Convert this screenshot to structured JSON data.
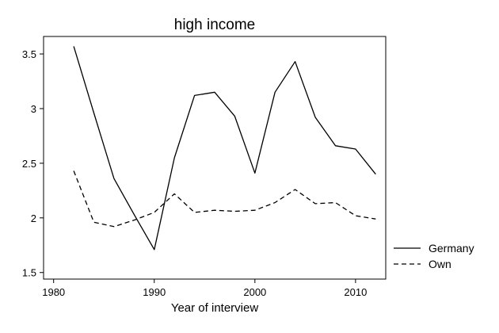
{
  "chart_data": {
    "type": "line",
    "title": "high income",
    "xlabel": "Year of interview",
    "ylabel": "",
    "xlim": [
      1979,
      2013
    ],
    "ylim": [
      1.44,
      3.66
    ],
    "xticks": [
      1980,
      1990,
      2000,
      2010
    ],
    "xtick_labels": [
      "1980",
      "1990",
      "2000",
      "2010"
    ],
    "yticks": [
      1.5,
      2,
      2.5,
      3,
      3.5
    ],
    "ytick_labels": [
      "1.5",
      "2",
      "2.5",
      "3",
      "3.5"
    ],
    "grid": false,
    "legend_position": "right",
    "series": [
      {
        "name": "Germany",
        "style": "solid",
        "color": "#000000",
        "x": [
          1982,
          1984,
          1986,
          1988,
          1990,
          1992,
          1994,
          1996,
          1998,
          2000,
          2002,
          2004,
          2006,
          2008,
          2010,
          2012
        ],
        "y": [
          3.57,
          2.96,
          2.36,
          2.03,
          1.71,
          2.55,
          3.12,
          3.15,
          2.93,
          2.41,
          3.15,
          3.43,
          2.92,
          2.66,
          2.63,
          2.4
        ]
      },
      {
        "name": "Own",
        "style": "dashed",
        "color": "#000000",
        "x": [
          1982,
          1984,
          1986,
          1988,
          1990,
          1992,
          1994,
          1996,
          1998,
          2000,
          2002,
          2004,
          2006,
          2008,
          2010,
          2012
        ],
        "y": [
          2.43,
          1.96,
          1.92,
          1.98,
          2.05,
          2.22,
          2.05,
          2.07,
          2.06,
          2.07,
          2.14,
          2.26,
          2.13,
          2.14,
          2.02,
          1.99
        ]
      }
    ]
  }
}
